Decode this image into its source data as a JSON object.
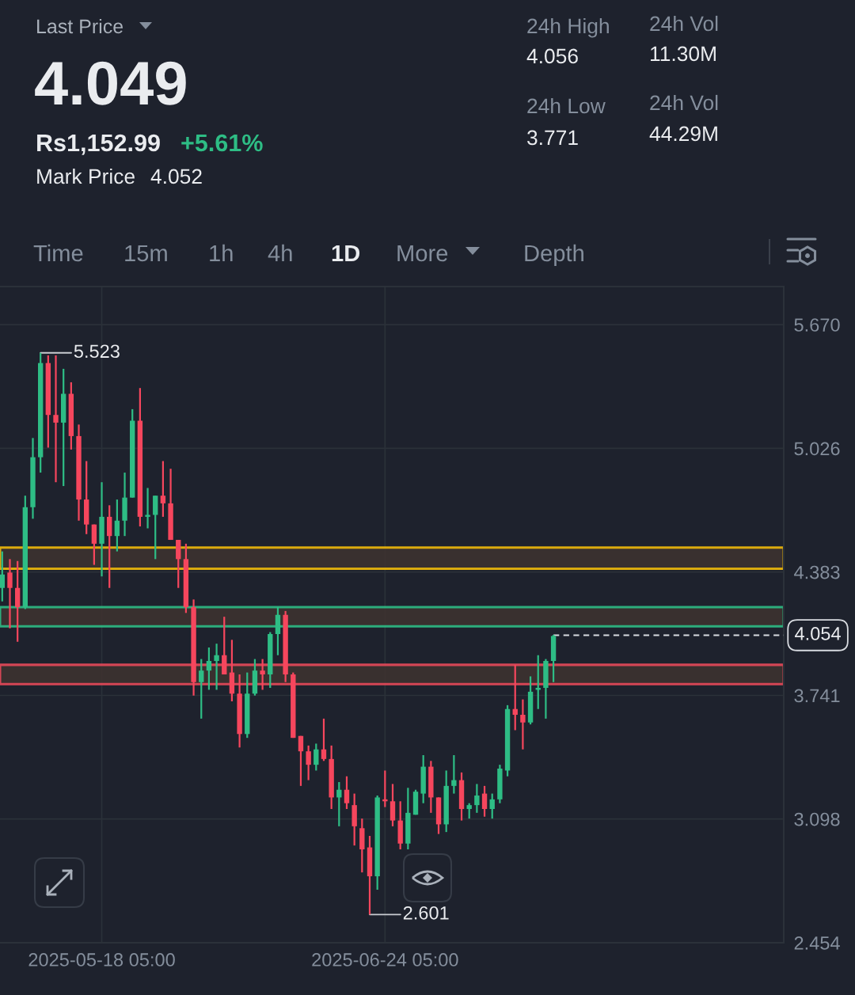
{
  "chart_data": [
    {
      "type": "other",
      "annotations": [
        "Last Price",
        "4.049",
        "Rs1,152.99",
        "+5.61%",
        "Mark Price",
        "4.052",
        "24h High",
        "4.056",
        "24h Low",
        "3.771",
        "24h Vol",
        "11.30M",
        "24h Vol",
        "44.29M",
        "Time",
        "15m",
        "1h",
        "4h",
        "1D",
        "More",
        "Depth"
      ]
    },
    {
      "type": "candlestick",
      "x": [
        "2025-05-05T05:00",
        "2025-05-06T05:00",
        "2025-05-07T05:00",
        "2025-05-08T05:00",
        "2025-05-09T05:00",
        "2025-05-10T05:00",
        "2025-05-11T05:00",
        "2025-05-12T05:00",
        "2025-05-13T05:00",
        "2025-05-14T05:00",
        "2025-05-15T05:00",
        "2025-05-16T05:00",
        "2025-05-17T05:00",
        "2025-05-18T05:00",
        "2025-05-19T05:00",
        "2025-05-20T05:00",
        "2025-05-21T05:00",
        "2025-05-22T05:00",
        "2025-05-23T05:00",
        "2025-05-24T05:00",
        "2025-05-25T05:00",
        "2025-05-26T05:00",
        "2025-05-27T05:00",
        "2025-05-28T05:00",
        "2025-05-29T05:00",
        "2025-05-30T05:00",
        "2025-05-31T05:00",
        "2025-06-01T05:00",
        "2025-06-02T05:00",
        "2025-06-03T05:00",
        "2025-06-04T05:00",
        "2025-06-05T05:00",
        "2025-06-06T05:00",
        "2025-06-07T05:00",
        "2025-06-08T05:00",
        "2025-06-09T05:00",
        "2025-06-10T05:00",
        "2025-06-11T05:00",
        "2025-06-12T05:00",
        "2025-06-13T05:00",
        "2025-06-14T05:00",
        "2025-06-15T05:00",
        "2025-06-16T05:00",
        "2025-06-17T05:00",
        "2025-06-18T05:00",
        "2025-06-19T05:00",
        "2025-06-20T05:00",
        "2025-06-21T05:00",
        "2025-06-22T05:00",
        "2025-06-23T05:00",
        "2025-06-24T05:00",
        "2025-06-25T05:00",
        "2025-06-26T05:00",
        "2025-06-27T05:00",
        "2025-06-28T05:00",
        "2025-06-29T05:00",
        "2025-06-30T05:00",
        "2025-07-01T05:00",
        "2025-07-02T05:00",
        "2025-07-03T05:00",
        "2025-07-04T05:00",
        "2025-07-05T05:00",
        "2025-07-06T05:00",
        "2025-07-07T05:00",
        "2025-07-08T05:00",
        "2025-07-09T05:00",
        "2025-07-10T05:00",
        "2025-07-11T05:00",
        "2025-07-12T05:00",
        "2025-07-13T05:00",
        "2025-07-14T05:00",
        "2025-07-15T05:00",
        "2025-07-16T05:00"
      ],
      "ohlc": [
        [
          4.3,
          4.49,
          4.23,
          4.37
        ],
        [
          4.38,
          4.45,
          4.09,
          4.3
        ],
        [
          4.3,
          4.44,
          4.02,
          4.2
        ],
        [
          4.2,
          4.78,
          4.19,
          4.72
        ],
        [
          4.72,
          5.08,
          4.66,
          4.98
        ],
        [
          4.98,
          5.523,
          4.9,
          5.47
        ],
        [
          5.47,
          5.51,
          5.03,
          5.2
        ],
        [
          5.2,
          5.51,
          4.85,
          5.16
        ],
        [
          5.16,
          5.44,
          4.83,
          5.31
        ],
        [
          5.31,
          5.37,
          5.02,
          5.09
        ],
        [
          5.09,
          5.15,
          4.65,
          4.76
        ],
        [
          4.76,
          4.96,
          4.58,
          4.63
        ],
        [
          4.63,
          4.63,
          4.42,
          4.53
        ],
        [
          4.53,
          4.85,
          4.36,
          4.67
        ],
        [
          4.67,
          4.73,
          4.3,
          4.57
        ],
        [
          4.57,
          4.76,
          4.49,
          4.65
        ],
        [
          4.65,
          4.9,
          4.57,
          4.77
        ],
        [
          4.77,
          5.23,
          4.77,
          5.17
        ],
        [
          5.17,
          5.34,
          4.62,
          4.67
        ],
        [
          4.67,
          4.82,
          4.61,
          4.68
        ],
        [
          4.68,
          4.78,
          4.45,
          4.78
        ],
        [
          4.78,
          4.96,
          4.67,
          4.74
        ],
        [
          4.74,
          4.92,
          4.55,
          4.55
        ],
        [
          4.55,
          4.55,
          4.3,
          4.45
        ],
        [
          4.45,
          4.53,
          4.17,
          4.2
        ],
        [
          4.2,
          4.24,
          3.74,
          3.81
        ],
        [
          3.81,
          3.93,
          3.62,
          3.87
        ],
        [
          3.87,
          3.99,
          3.77,
          3.92
        ],
        [
          3.92,
          4.01,
          3.77,
          3.95
        ],
        [
          3.95,
          4.15,
          3.85,
          3.85
        ],
        [
          3.86,
          4.03,
          3.71,
          3.75
        ],
        [
          3.75,
          3.85,
          3.47,
          3.54
        ],
        [
          3.54,
          3.86,
          3.52,
          3.75
        ],
        [
          3.75,
          3.93,
          3.74,
          3.87
        ],
        [
          3.87,
          3.93,
          3.77,
          3.85
        ],
        [
          3.85,
          4.07,
          3.78,
          4.06
        ],
        [
          4.06,
          4.2,
          3.95,
          4.16
        ],
        [
          4.16,
          4.18,
          3.81,
          3.85
        ],
        [
          3.85,
          3.86,
          3.52,
          3.52
        ],
        [
          3.53,
          3.53,
          3.27,
          3.45
        ],
        [
          3.45,
          3.48,
          3.3,
          3.38
        ],
        [
          3.38,
          3.49,
          3.35,
          3.46
        ],
        [
          3.46,
          3.62,
          3.4,
          3.41
        ],
        [
          3.41,
          3.48,
          3.15,
          3.21
        ],
        [
          3.21,
          3.29,
          3.06,
          3.25
        ],
        [
          3.25,
          3.32,
          3.15,
          3.18
        ],
        [
          3.17,
          3.23,
          2.96,
          3.06
        ],
        [
          3.05,
          3.1,
          2.82,
          2.94
        ],
        [
          2.95,
          3.01,
          2.601,
          2.8
        ],
        [
          2.8,
          3.22,
          2.73,
          3.21
        ],
        [
          3.2,
          3.35,
          3.16,
          3.19
        ],
        [
          3.19,
          3.28,
          3.06,
          3.09
        ],
        [
          3.09,
          3.19,
          2.94,
          2.97
        ],
        [
          2.97,
          3.26,
          2.94,
          3.13
        ],
        [
          3.12,
          3.25,
          3.12,
          3.24
        ],
        [
          3.23,
          3.43,
          3.18,
          3.37
        ],
        [
          3.37,
          3.4,
          3.13,
          3.21
        ],
        [
          3.21,
          3.21,
          3.02,
          3.07
        ],
        [
          3.07,
          3.35,
          3.03,
          3.27
        ],
        [
          3.27,
          3.43,
          3.23,
          3.3
        ],
        [
          3.3,
          3.34,
          3.09,
          3.15
        ],
        [
          3.15,
          3.18,
          3.1,
          3.17
        ],
        [
          3.17,
          3.28,
          3.13,
          3.22
        ],
        [
          3.23,
          3.27,
          3.11,
          3.15
        ],
        [
          3.15,
          3.23,
          3.1,
          3.2
        ],
        [
          3.2,
          3.38,
          3.18,
          3.36
        ],
        [
          3.35,
          3.69,
          3.32,
          3.67
        ],
        [
          3.67,
          3.9,
          3.56,
          3.64
        ],
        [
          3.64,
          3.72,
          3.46,
          3.6
        ],
        [
          3.6,
          3.84,
          3.59,
          3.76
        ],
        [
          3.77,
          3.95,
          3.67,
          3.78
        ],
        [
          3.78,
          3.93,
          3.62,
          3.92
        ],
        [
          3.92,
          4.056,
          3.81,
          4.05
        ]
      ],
      "colors": [
        "#2ebd85",
        "#f6465d",
        "#f6465d",
        "#2ebd85",
        "#2ebd85",
        "#2ebd85",
        "#f6465d",
        "#f6465d",
        "#2ebd85",
        "#f6465d",
        "#f6465d",
        "#f6465d",
        "#f6465d",
        "#2ebd85",
        "#f6465d",
        "#2ebd85",
        "#2ebd85",
        "#2ebd85",
        "#f6465d",
        "#2ebd85",
        "#2ebd85",
        "#f6465d",
        "#f6465d",
        "#f6465d",
        "#f6465d",
        "#f6465d",
        "#2ebd85",
        "#2ebd85",
        "#2ebd85",
        "#f6465d",
        "#f6465d",
        "#f6465d",
        "#2ebd85",
        "#2ebd85",
        "#f6465d",
        "#2ebd85",
        "#2ebd85",
        "#f6465d",
        "#f6465d",
        "#f6465d",
        "#f6465d",
        "#2ebd85",
        "#f6465d",
        "#f6465d",
        "#2ebd85",
        "#f6465d",
        "#f6465d",
        "#f6465d",
        "#f6465d",
        "#2ebd85",
        "#f6465d",
        "#f6465d",
        "#f6465d",
        "#2ebd85",
        "#2ebd85",
        "#2ebd85",
        "#f6465d",
        "#f6465d",
        "#2ebd85",
        "#2ebd85",
        "#f6465d",
        "#2ebd85",
        "#2ebd85",
        "#f6465d",
        "#2ebd85",
        "#2ebd85",
        "#2ebd85",
        "#f6465d",
        "#f6465d",
        "#2ebd85",
        "#2ebd85",
        "#2ebd85",
        "#2ebd85"
      ],
      "xlim": [
        "2025-05-04T22:00",
        "2025-08-15T07:00"
      ],
      "ylim": [
        2.454,
        5.868
      ],
      "xticks": [
        {
          "value": "2025-05-18T05:00",
          "label": "2025-05-18 05:00"
        },
        {
          "value": "2025-06-24T05:00",
          "label": "2025-06-24 05:00"
        }
      ],
      "yticks": [
        {
          "value": 5.67,
          "label": "5.670"
        },
        5.026,
        4.383,
        3.741,
        3.098,
        2.454
      ],
      "grid": true,
      "annotations": [
        {
          "text": "5.523",
          "x": "2025-05-10T05:00",
          "y": 5.523
        },
        {
          "text": "2.601",
          "x": "2025-06-22T05:00",
          "y": 2.601
        }
      ],
      "ref_lines": [
        {
          "axis": "y",
          "value": 4.054,
          "label": "4.054",
          "line_style": "dashed",
          "color": "#d8dbe0"
        }
      ],
      "bands": [
        {
          "axis": "y",
          "from": 4.4,
          "to": 4.51,
          "color": "#f0b90b"
        },
        {
          "axis": "y",
          "from": 4.1,
          "to": 4.2,
          "color": "#2ebd85"
        },
        {
          "axis": "y",
          "from": 3.8,
          "to": 3.9,
          "color": "#e84a5a"
        }
      ]
    }
  ]
}
